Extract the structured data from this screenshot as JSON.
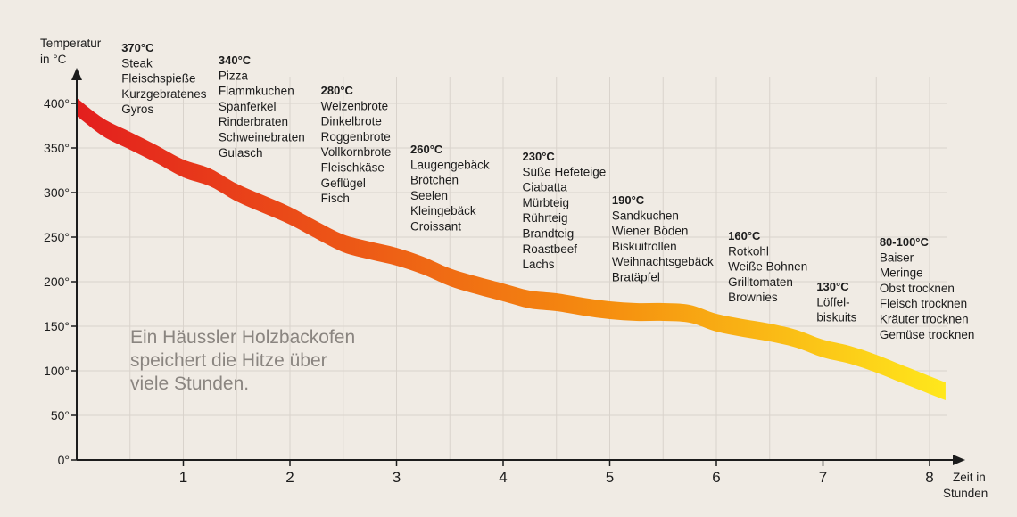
{
  "chart_data": {
    "type": "area",
    "title": "",
    "ylabel": "Temperatur in °C",
    "xlabel": "Zeit in Stunden",
    "xlim": [
      0,
      8.15
    ],
    "ylim": [
      0,
      420
    ],
    "x_ticks": [
      1,
      2,
      3,
      4,
      5,
      6,
      7,
      8
    ],
    "y_ticks": [
      {
        "value": 0,
        "label": "0°"
      },
      {
        "value": 50,
        "label": "50°"
      },
      {
        "value": 100,
        "label": "100°"
      },
      {
        "value": 150,
        "label": "150°"
      },
      {
        "value": 200,
        "label": "200°"
      },
      {
        "value": 250,
        "label": "250°"
      },
      {
        "value": 300,
        "label": "300°"
      },
      {
        "value": 350,
        "label": "350°"
      },
      {
        "value": 400,
        "label": "400°"
      }
    ],
    "grid": true,
    "series": [
      {
        "points": [
          [
            0,
            396
          ],
          [
            0.25,
            373
          ],
          [
            0.5,
            358
          ],
          [
            0.75,
            343
          ],
          [
            1,
            327
          ],
          [
            1.25,
            317
          ],
          [
            1.5,
            300
          ],
          [
            1.75,
            287
          ],
          [
            2,
            274
          ],
          [
            2.25,
            258
          ],
          [
            2.5,
            243
          ],
          [
            2.75,
            235
          ],
          [
            3,
            228
          ],
          [
            3.25,
            218
          ],
          [
            3.5,
            205
          ],
          [
            3.75,
            196
          ],
          [
            4,
            188
          ],
          [
            4.25,
            180
          ],
          [
            4.5,
            177
          ],
          [
            4.75,
            172
          ],
          [
            5,
            168
          ],
          [
            5.25,
            166
          ],
          [
            5.5,
            166
          ],
          [
            5.75,
            164
          ],
          [
            6,
            154
          ],
          [
            6.25,
            148
          ],
          [
            6.5,
            143
          ],
          [
            6.75,
            136
          ],
          [
            7,
            125
          ],
          [
            7.25,
            118
          ],
          [
            7.5,
            108
          ],
          [
            7.75,
            96
          ],
          [
            8,
            84
          ],
          [
            8.15,
            77
          ]
        ],
        "band_width": 20,
        "color_start": "#e31e1e",
        "color_mid": "#f58c0f",
        "color_end": "#ffe81c"
      }
    ],
    "annotations": [
      {
        "x": 0.42,
        "y": 458,
        "heading": "370°C",
        "items": [
          "Steak",
          "Fleischspieße",
          "Kurzgebratenes",
          "Gyros"
        ]
      },
      {
        "x": 1.33,
        "y": 444,
        "heading": "340°C",
        "items": [
          "Pizza",
          "Flammkuchen",
          "Spanferkel",
          "Rinderbraten",
          "Schweinebraten",
          "Gulasch"
        ]
      },
      {
        "x": 2.29,
        "y": 410,
        "heading": "280°C",
        "items": [
          "Weizenbrote",
          "Dinkelbrote",
          "Roggenbrote",
          "Vollkornbrote",
          "Fleischkäse",
          "Geflügel",
          "Fisch"
        ]
      },
      {
        "x": 3.13,
        "y": 344,
        "heading": "260°C",
        "items": [
          "Laugengebäck",
          "Brötchen",
          "Seelen",
          "Kleingebäck",
          "Croissant"
        ]
      },
      {
        "x": 4.18,
        "y": 336,
        "heading": "230°C",
        "items": [
          "Süße Hefeteige",
          "Ciabatta",
          "Mürbteig",
          "Rührteig",
          "Brandteig",
          "Roastbeef",
          "Lachs"
        ]
      },
      {
        "x": 5.02,
        "y": 287,
        "heading": "190°C",
        "items": [
          "Sandkuchen",
          "Wiener Böden",
          "Biskuitrollen",
          "Weihnachtsgebäck",
          "Bratäpfel"
        ]
      },
      {
        "x": 6.11,
        "y": 247,
        "heading": "160°C",
        "items": [
          "Rotkohl",
          "Weiße Bohnen",
          "Grilltomaten",
          "Brownies"
        ]
      },
      {
        "x": 6.94,
        "y": 190,
        "heading": "130°C",
        "items": [
          "Löffel-",
          "biskuits"
        ]
      },
      {
        "x": 7.53,
        "y": 240,
        "heading": "80-100°C",
        "items": [
          "Baiser",
          "Meringe",
          "Obst trocknen",
          "Fleisch trocknen",
          "Kräuter trocknen",
          "Gemüse trocknen"
        ]
      }
    ],
    "note": [
      "Ein Häussler Holzbackofen",
      "speichert die Hitze über",
      "viele Stunden."
    ]
  }
}
